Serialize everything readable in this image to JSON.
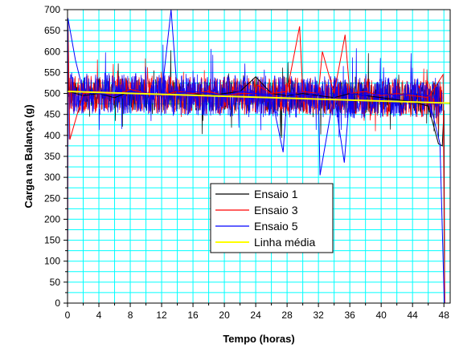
{
  "chart_data": {
    "type": "line",
    "xlabel": "Tempo (horas)",
    "ylabel": "Carga na Balança (g)",
    "xlim": [
      0,
      48.8
    ],
    "ylim": [
      0,
      700
    ],
    "xticks": [
      "0",
      "4",
      "8",
      "12",
      "16",
      "20",
      "24",
      "28",
      "32",
      "36",
      "40",
      "44",
      "48"
    ],
    "yticks": [
      "0",
      "50",
      "100",
      "150",
      "200",
      "250",
      "300",
      "350",
      "400",
      "450",
      "500",
      "550",
      "600",
      "650",
      "700"
    ],
    "grid": true,
    "legend_position": "center",
    "background": "#ffffff",
    "grid_color": "#00ffff",
    "series": [
      {
        "name": "Ensaio 1",
        "color": "#000000",
        "x": [
          0,
          0.05,
          0.1,
          2,
          4,
          6,
          8,
          10,
          12,
          14,
          16,
          18,
          20,
          22,
          24,
          26,
          28,
          30,
          32,
          34,
          36,
          38,
          40,
          42,
          44,
          46,
          47.3,
          47.8,
          48.0,
          48.1
        ],
        "y": [
          0,
          680,
          505,
          495,
          500,
          490,
          505,
          500,
          495,
          505,
          500,
          495,
          500,
          505,
          540,
          500,
          495,
          500,
          495,
          490,
          500,
          495,
          490,
          485,
          480,
          470,
          380,
          375,
          460,
          0
        ]
      },
      {
        "name": "Ensaio 3",
        "color": "#ff0000",
        "x": [
          0,
          0.05,
          0.3,
          2,
          4,
          6,
          8,
          10,
          12,
          14,
          16,
          18,
          20,
          22,
          24,
          24.2,
          26,
          28,
          29.6,
          30,
          32,
          32.5,
          34,
          35.4,
          36,
          38,
          40,
          42,
          44,
          46,
          47.9,
          48.1
        ],
        "y": [
          0,
          680,
          390,
          500,
          505,
          495,
          510,
          500,
          495,
          505,
          500,
          505,
          495,
          500,
          500,
          520,
          500,
          505,
          660,
          505,
          500,
          600,
          500,
          640,
          500,
          505,
          495,
          500,
          495,
          490,
          545,
          0
        ]
      },
      {
        "name": "Ensaio 5",
        "color": "#0000ff",
        "x": [
          0,
          0.05,
          1,
          2,
          4,
          6,
          8,
          10,
          12,
          13.2,
          14,
          16,
          18,
          20,
          22,
          24,
          26,
          27.5,
          28,
          30,
          32,
          32.2,
          34,
          35.3,
          36,
          38,
          40,
          42,
          44,
          46,
          47.5,
          48.05
        ],
        "y": [
          0,
          680,
          580,
          505,
          500,
          495,
          505,
          500,
          495,
          700,
          500,
          505,
          500,
          495,
          505,
          500,
          495,
          360,
          500,
          495,
          500,
          305,
          500,
          335,
          500,
          495,
          500,
          495,
          500,
          495,
          380,
          0
        ]
      },
      {
        "name": "Linha média",
        "color": "#ffff00",
        "x": [
          0,
          48.8
        ],
        "y": [
          505,
          477
        ]
      }
    ]
  }
}
